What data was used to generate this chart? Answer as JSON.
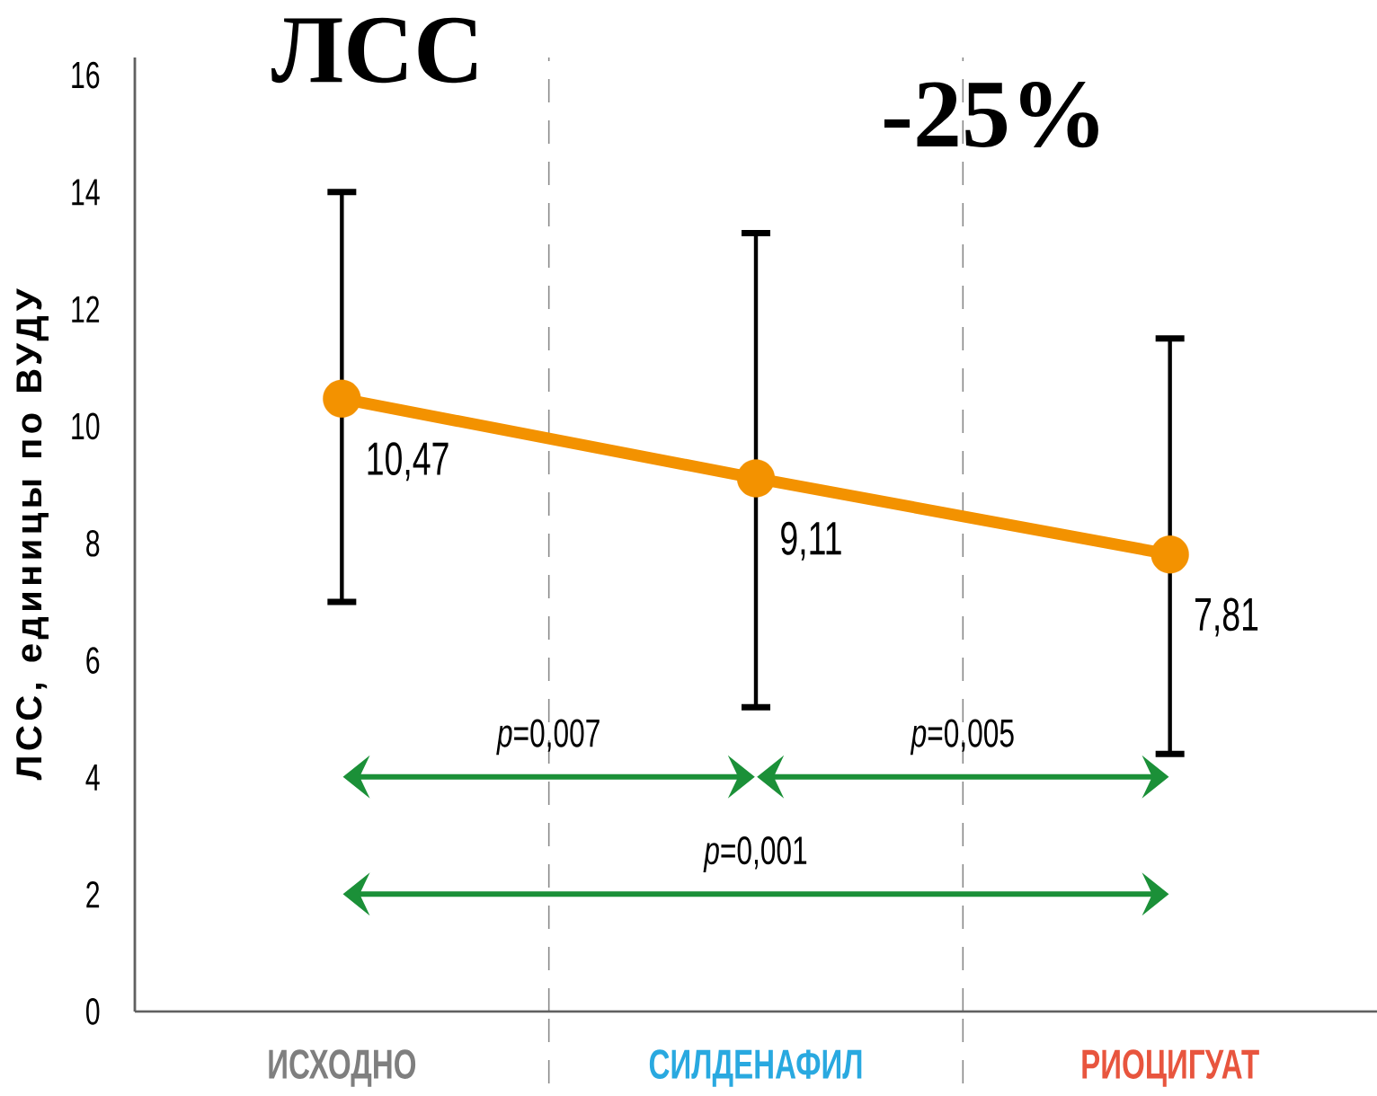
{
  "chart_data": {
    "type": "line",
    "title": "ЛСС",
    "ylabel": "ЛСС, единицы по ВУДУ",
    "annotations": [
      "-25%",
      "*p*=0,007",
      "*p*=0,005",
      "*p*=0,001"
    ],
    "categories": [
      "ИСХОДНО",
      "СИЛДЕНАФИЛ",
      "РИОЦИГУАТ"
    ],
    "values": [
      10.47,
      9.11,
      7.81
    ],
    "color": "#f39200",
    "errors": [
      [
        7.0,
        14.0
      ],
      [
        5.2,
        13.3
      ],
      [
        4.4,
        11.5
      ]
    ],
    "value_labels": [
      "10,47",
      "9,11",
      "7,81"
    ],
    "ylim": [
      0,
      16.3
    ],
    "yticks": [
      0,
      2,
      4,
      6,
      8,
      10,
      12,
      14,
      16
    ],
    "grid": "x",
    "marker": "circle",
    "line_style": "solid"
  }
}
